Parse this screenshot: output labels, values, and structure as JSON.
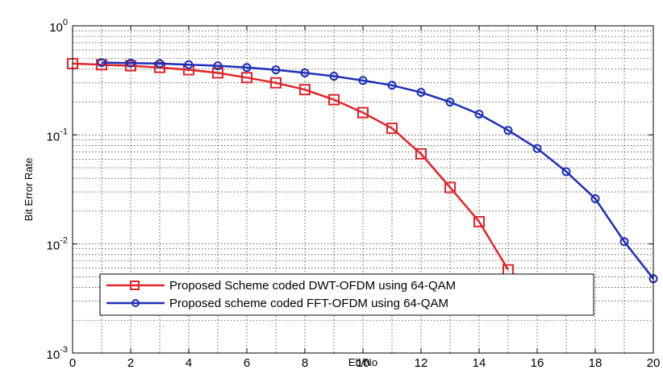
{
  "chart_data": {
    "type": "line",
    "xlabel": "Eb/No",
    "ylabel": "Bit Error Rate",
    "xlim": [
      0,
      20
    ],
    "ylim": [
      0.001,
      1
    ],
    "yscale": "log",
    "grid": true,
    "legend_position": "bottom-left",
    "x_ticks": [
      "0",
      "2",
      "4",
      "6",
      "8",
      "10",
      "12",
      "14",
      "16",
      "18",
      "20"
    ],
    "y_ticks": [
      {
        "base": "10",
        "exp": "0"
      },
      {
        "base": "10",
        "exp": "-1"
      },
      {
        "base": "10",
        "exp": "-2"
      },
      {
        "base": "10",
        "exp": "-3"
      }
    ],
    "series": [
      {
        "name": "Proposed Scheme coded DWT-OFDM using 64-QAM",
        "color": "#e0262b",
        "marker": "square",
        "x": [
          0,
          1,
          2,
          3,
          4,
          5,
          6,
          7,
          8,
          9,
          10,
          11,
          12,
          13,
          14,
          15
        ],
        "y": [
          0.45,
          0.44,
          0.43,
          0.415,
          0.395,
          0.37,
          0.335,
          0.3,
          0.26,
          0.21,
          0.16,
          0.115,
          0.067,
          0.033,
          0.016,
          0.0058
        ]
      },
      {
        "name": "Proposed scheme coded FFT-OFDM using 64-QAM",
        "color": "#1f2fb5",
        "marker": "circle",
        "x": [
          1,
          2,
          3,
          4,
          5,
          6,
          7,
          8,
          9,
          10,
          11,
          12,
          13,
          14,
          15,
          16,
          17,
          18,
          19,
          20
        ],
        "y": [
          0.46,
          0.455,
          0.45,
          0.44,
          0.43,
          0.415,
          0.395,
          0.37,
          0.345,
          0.315,
          0.285,
          0.245,
          0.2,
          0.155,
          0.11,
          0.075,
          0.046,
          0.026,
          0.0105,
          0.0048
        ]
      }
    ]
  }
}
